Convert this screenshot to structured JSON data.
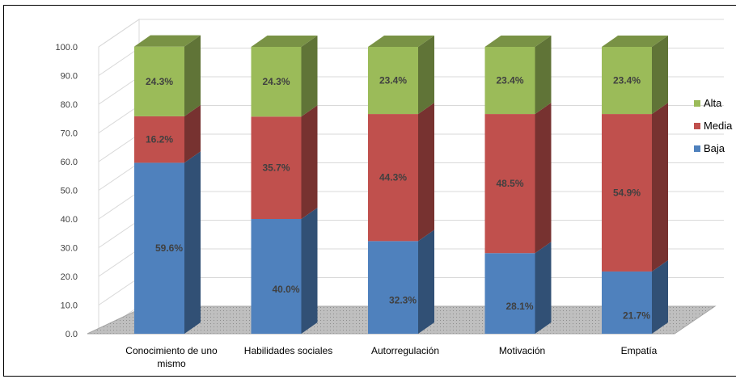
{
  "chart_data": {
    "type": "bar",
    "stacked": true,
    "three_d": true,
    "categories": [
      "Conocimiento de uno mismo",
      "Habilidades sociales",
      "Autorregulación",
      "Motivación",
      "Empatía"
    ],
    "category_labels": [
      [
        "Conocimiento de uno",
        "mismo"
      ],
      [
        "Habilidades sociales"
      ],
      [
        "Autorregulación"
      ],
      [
        "Motivación"
      ],
      [
        "Empatía"
      ]
    ],
    "series": [
      {
        "name": "Baja",
        "color": "#4F81BD",
        "values": [
          59.6,
          40.0,
          32.3,
          28.1,
          21.7
        ],
        "labels": [
          "59.6%",
          "40.0%",
          "32.3%",
          "28.1%",
          "21.7%"
        ]
      },
      {
        "name": "Media",
        "color": "#C0504D",
        "values": [
          16.2,
          35.7,
          44.3,
          48.5,
          54.9
        ],
        "labels": [
          "16.2%",
          "35.7%",
          "44.3%",
          "48.5%",
          "54.9%"
        ]
      },
      {
        "name": "Alta",
        "color": "#9BBB59",
        "values": [
          24.3,
          24.3,
          23.4,
          23.4,
          23.4
        ],
        "labels": [
          "24.3%",
          "24.3%",
          "23.4%",
          "23.4%",
          "23.4%"
        ]
      }
    ],
    "ylim": [
      0,
      100
    ],
    "yticks": [
      "0.0",
      "10.0",
      "20.0",
      "30.0",
      "40.0",
      "50.0",
      "60.0",
      "70.0",
      "80.0",
      "90.0",
      "100.0"
    ],
    "legend": {
      "position": "right",
      "order": [
        "Alta",
        "Media",
        "Baja"
      ]
    },
    "grid": true,
    "title": "",
    "xlabel": "",
    "ylabel": ""
  }
}
